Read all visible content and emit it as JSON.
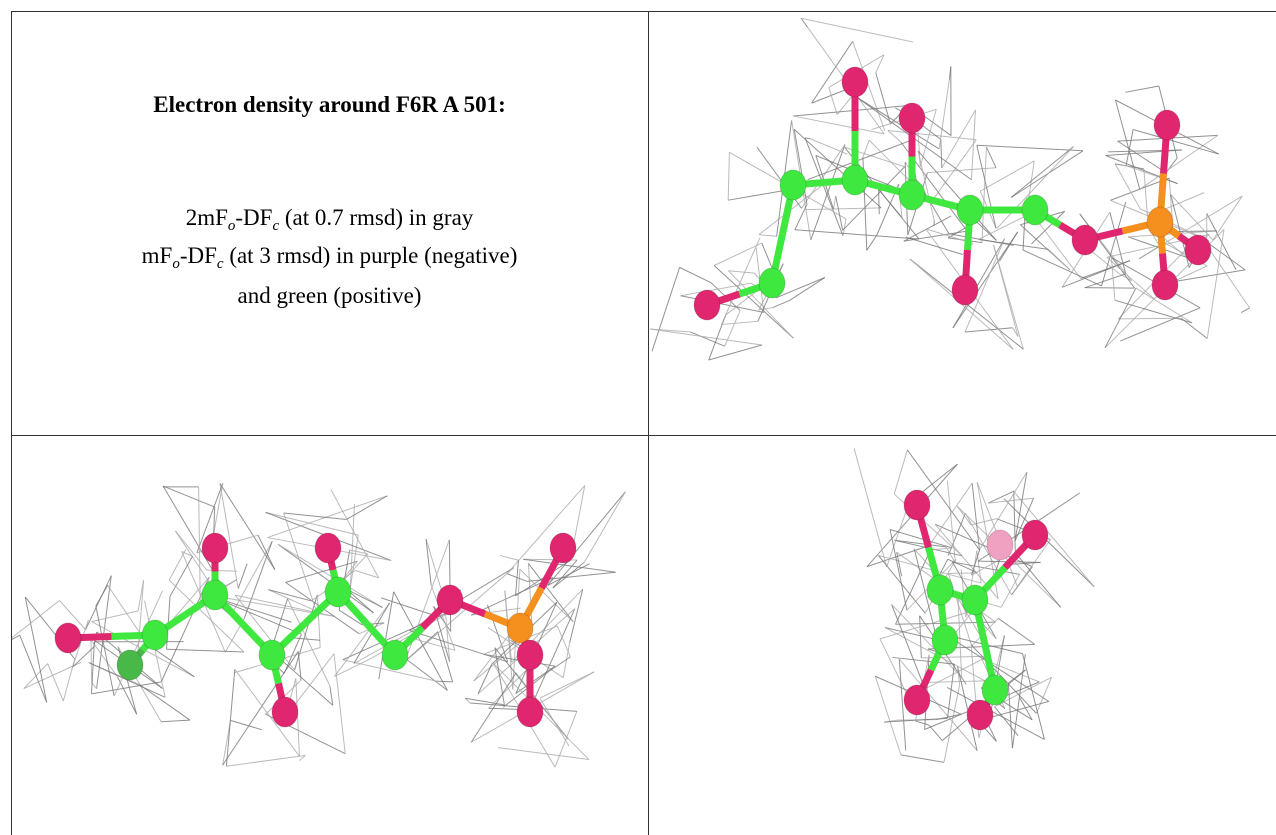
{
  "title": "Electron density around F6R A 501:",
  "lines": [
    [
      "2mF",
      "o",
      "-DF",
      "c",
      " (at 0.7 rmsd) in gray"
    ],
    [
      "mF",
      "o",
      "-DF",
      "c",
      " (at 3 rmsd) in purple (negative)"
    ],
    [
      "and green (positive)"
    ]
  ]
}
